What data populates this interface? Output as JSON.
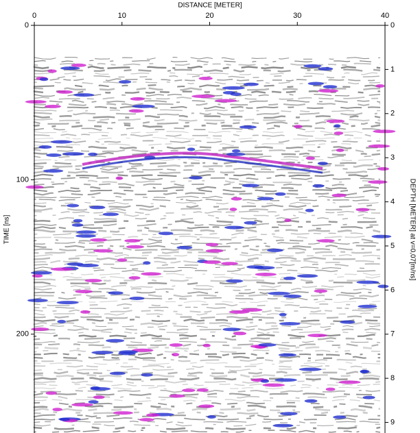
{
  "chart_data": {
    "type": "radargram",
    "x_label": "DISTANCE [METER]",
    "y_label": "TIME [ns]",
    "y2_label": "DEPTH [METER] at v=0,07[m/ns]",
    "xlim": [
      0,
      40
    ],
    "xticks": [
      0,
      10,
      20,
      30,
      40
    ],
    "ylim": [
      0,
      264
    ],
    "yticks": [
      0,
      100,
      200
    ],
    "y2lim": [
      0,
      9.24
    ],
    "y2ticks": [
      0,
      1,
      2,
      3,
      4,
      5,
      6,
      7,
      8,
      9
    ]
  }
}
